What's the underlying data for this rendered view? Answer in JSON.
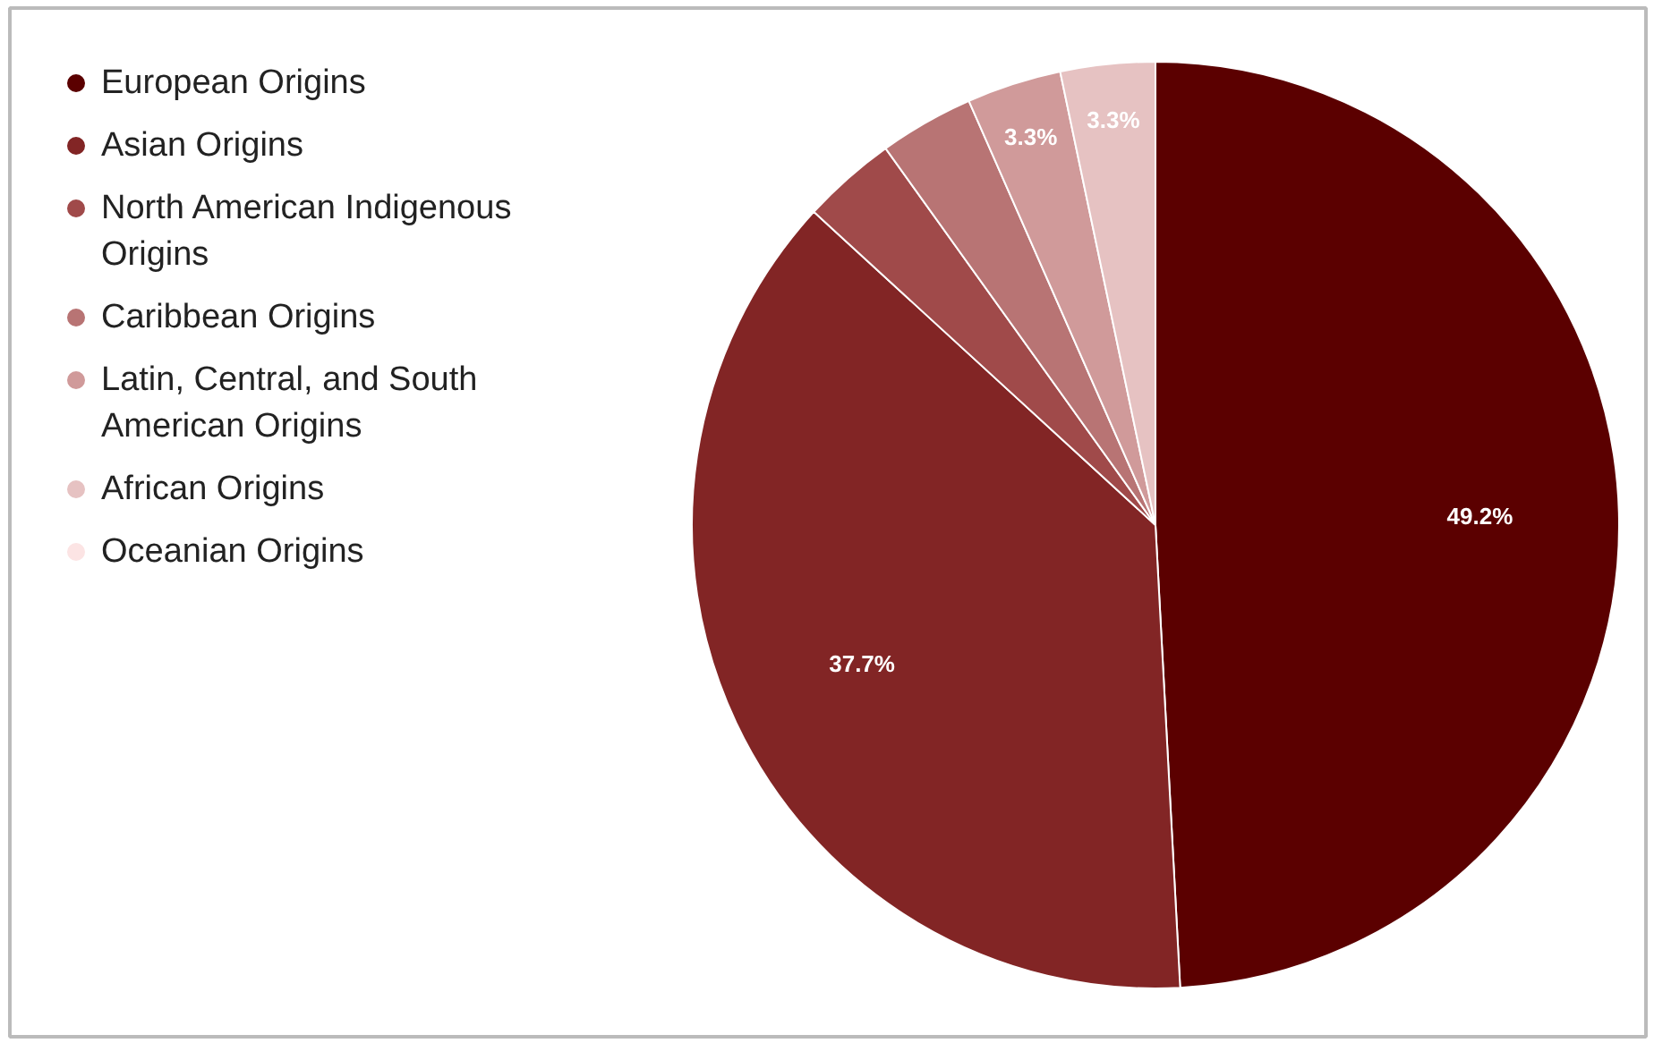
{
  "chart_data": {
    "type": "pie",
    "categories": [
      "European Origins",
      "Asian Origins",
      "North American Indigenous Origins",
      "Caribbean Origins",
      "Latin, Central, and South American Origins",
      "African Origins",
      "Oceanian Origins"
    ],
    "values": [
      49.2,
      37.7,
      3.3,
      3.3,
      3.3,
      3.3,
      0
    ],
    "colors": [
      "#5b0000",
      "#822525",
      "#a04a4a",
      "#b87474",
      "#d09a9a",
      "#e6c2c2",
      "#fce4e4"
    ],
    "value_labels": [
      "49.2%",
      "37.7%",
      null,
      null,
      "3.3%",
      "3.3%",
      null
    ],
    "legend": "left"
  }
}
